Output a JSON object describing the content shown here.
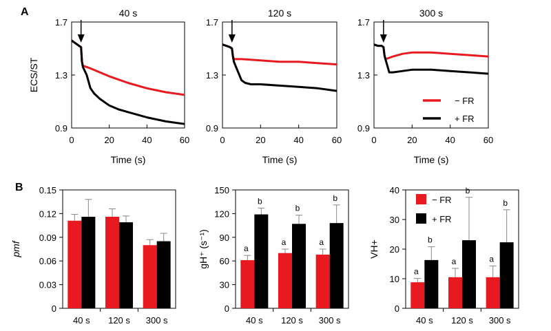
{
  "colors": {
    "minus_fr": "#e8191f",
    "plus_fr": "#000000"
  },
  "panel_labels": {
    "a": "A",
    "b": "B"
  },
  "legend": {
    "minus": "− FR",
    "plus": "+ FR"
  },
  "chart_data": [
    {
      "type": "line",
      "title": "40 s",
      "xlabel": "Time (s)",
      "ylabel": "ECS/ST",
      "xlim": [
        0,
        60
      ],
      "ylim": [
        0.9,
        1.7
      ],
      "xticks": [
        0,
        20,
        40,
        60
      ],
      "yticks": [
        0.9,
        1.3,
        1.7
      ],
      "arrow_x": 5,
      "series": [
        {
          "name": "− FR",
          "x": [
            0,
            2,
            4,
            5,
            5.5,
            6,
            8,
            10,
            15,
            20,
            30,
            40,
            50,
            60
          ],
          "y": [
            1.56,
            1.54,
            1.52,
            1.51,
            1.4,
            1.37,
            1.36,
            1.35,
            1.32,
            1.29,
            1.24,
            1.2,
            1.17,
            1.15
          ]
        },
        {
          "name": "+ FR",
          "x": [
            0,
            2,
            4,
            5,
            5.5,
            6,
            8,
            10,
            12,
            15,
            20,
            25,
            30,
            40,
            50,
            60
          ],
          "y": [
            1.56,
            1.54,
            1.52,
            1.51,
            1.4,
            1.36,
            1.3,
            1.2,
            1.16,
            1.12,
            1.07,
            1.04,
            1.02,
            0.98,
            0.95,
            0.93
          ]
        }
      ]
    },
    {
      "type": "line",
      "title": "120 s",
      "xlabel": "Time (s)",
      "ylabel": "",
      "xlim": [
        0,
        60
      ],
      "ylim": [
        0.9,
        1.7
      ],
      "xticks": [
        0,
        20,
        40,
        60
      ],
      "yticks": [
        0.9,
        1.3,
        1.7
      ],
      "arrow_x": 5,
      "series": [
        {
          "name": "− FR",
          "x": [
            0,
            2,
            4,
            5,
            5.5,
            6,
            10,
            20,
            30,
            40,
            50,
            60
          ],
          "y": [
            1.53,
            1.52,
            1.51,
            1.5,
            1.44,
            1.42,
            1.42,
            1.41,
            1.4,
            1.4,
            1.39,
            1.38
          ]
        },
        {
          "name": "+ FR",
          "x": [
            0,
            2,
            4,
            5,
            5.5,
            6,
            8,
            10,
            12,
            15,
            20,
            30,
            40,
            50,
            60
          ],
          "y": [
            1.53,
            1.52,
            1.51,
            1.5,
            1.44,
            1.4,
            1.33,
            1.26,
            1.24,
            1.23,
            1.23,
            1.22,
            1.21,
            1.2,
            1.18
          ]
        }
      ]
    },
    {
      "type": "line",
      "title": "300 s",
      "xlabel": "Time (s)",
      "ylabel": "",
      "xlim": [
        0,
        60
      ],
      "ylim": [
        0.9,
        1.7
      ],
      "xticks": [
        0,
        20,
        40,
        60
      ],
      "yticks": [
        0.9,
        1.3,
        1.7
      ],
      "arrow_x": 5,
      "series": [
        {
          "name": "− FR",
          "x": [
            0,
            2,
            4,
            5,
            5.5,
            6,
            8,
            10,
            15,
            20,
            30,
            40,
            50,
            60
          ],
          "y": [
            1.53,
            1.52,
            1.52,
            1.51,
            1.45,
            1.42,
            1.43,
            1.44,
            1.46,
            1.47,
            1.47,
            1.46,
            1.45,
            1.44
          ]
        },
        {
          "name": "+ FR",
          "x": [
            0,
            2,
            4,
            5,
            5.5,
            6,
            7,
            8,
            10,
            15,
            20,
            30,
            40,
            50,
            60
          ],
          "y": [
            1.53,
            1.52,
            1.52,
            1.51,
            1.45,
            1.42,
            1.37,
            1.32,
            1.32,
            1.33,
            1.34,
            1.34,
            1.33,
            1.32,
            1.31
          ]
        }
      ]
    },
    {
      "type": "bar",
      "title": "",
      "xlabel": "",
      "ylabel": "pmf",
      "categories": [
        "40 s",
        "120 s",
        "300 s"
      ],
      "ylim": [
        0,
        0.15
      ],
      "yticks": [
        0,
        0.03,
        0.06,
        0.09,
        0.12,
        0.15
      ],
      "yticklabels": [
        "0",
        "0.03",
        "0.06",
        "0.09",
        "0.12",
        "0.15"
      ],
      "series": [
        {
          "name": "− FR",
          "values": [
            0.111,
            0.116,
            0.08
          ],
          "errors": [
            0.008,
            0.01,
            0.007
          ],
          "letters": []
        },
        {
          "name": "+ FR",
          "values": [
            0.116,
            0.109,
            0.085
          ],
          "errors": [
            0.022,
            0.008,
            0.01
          ],
          "letters": []
        }
      ]
    },
    {
      "type": "bar",
      "title": "",
      "xlabel": "",
      "ylabel": "gH⁺ (s⁻¹)",
      "categories": [
        "40 s",
        "120 s",
        "300 s"
      ],
      "ylim": [
        0,
        150
      ],
      "yticks": [
        0,
        30,
        60,
        90,
        120,
        150
      ],
      "yticklabels": [
        "0",
        "30",
        "60",
        "90",
        "120",
        "150"
      ],
      "series": [
        {
          "name": "− FR",
          "values": [
            61,
            70,
            68
          ],
          "errors": [
            6,
            5,
            7
          ],
          "letters": [
            "a",
            "a",
            "a"
          ]
        },
        {
          "name": "+ FR",
          "values": [
            119,
            107,
            108
          ],
          "errors": [
            8,
            11,
            23
          ],
          "letters": [
            "b",
            "b",
            "b"
          ]
        }
      ]
    },
    {
      "type": "bar",
      "title": "",
      "xlabel": "",
      "ylabel": "VH+",
      "categories": [
        "40 s",
        "120 s",
        "300 s"
      ],
      "ylim": [
        0,
        40
      ],
      "yticks": [
        0,
        10,
        20,
        30,
        40
      ],
      "yticklabels": [
        "0",
        "10",
        "20",
        "30",
        "40"
      ],
      "series": [
        {
          "name": "− FR",
          "values": [
            8.8,
            10.5,
            10.5
          ],
          "errors": [
            1.3,
            3.0,
            3.8
          ],
          "letters": [
            "a",
            "a",
            "a"
          ]
        },
        {
          "name": "+ FR",
          "values": [
            16.3,
            23.0,
            22.3
          ],
          "errors": [
            4.5,
            14.5,
            11.0
          ],
          "letters": [
            "b",
            "b",
            "b"
          ]
        }
      ]
    }
  ]
}
